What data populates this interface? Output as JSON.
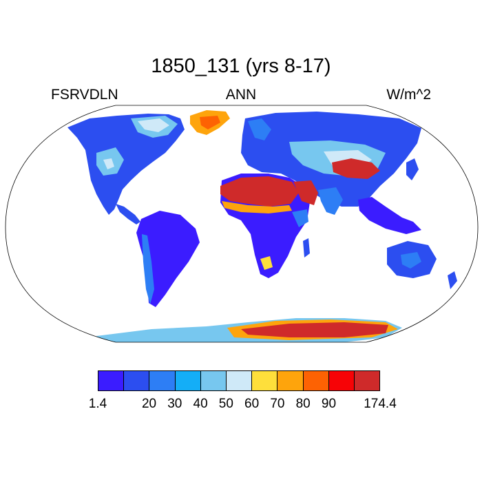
{
  "title": "1850_131 (yrs 8-17)",
  "left_string": "FSRVDLN",
  "center_string": "ANN",
  "right_string": "W/m^2",
  "projection": "Robinson",
  "colorbar": {
    "colors": [
      "#3b1cff",
      "#2c4ef0",
      "#2d7ef5",
      "#14aef7",
      "#77c7ef",
      "#cfe9f8",
      "#fedf3b",
      "#fea40c",
      "#fd6203",
      "#f70306",
      "#cf2a2a"
    ],
    "labels": [
      {
        "text": "1.4",
        "boundary": 0
      },
      {
        "text": "20",
        "boundary": 2
      },
      {
        "text": "30",
        "boundary": 3
      },
      {
        "text": "40",
        "boundary": 4
      },
      {
        "text": "50",
        "boundary": 5
      },
      {
        "text": "60",
        "boundary": 6
      },
      {
        "text": "70",
        "boundary": 7
      },
      {
        "text": "80",
        "boundary": 8
      },
      {
        "text": "90",
        "boundary": 9
      },
      {
        "text": "174.4",
        "boundary": 11
      }
    ]
  }
}
